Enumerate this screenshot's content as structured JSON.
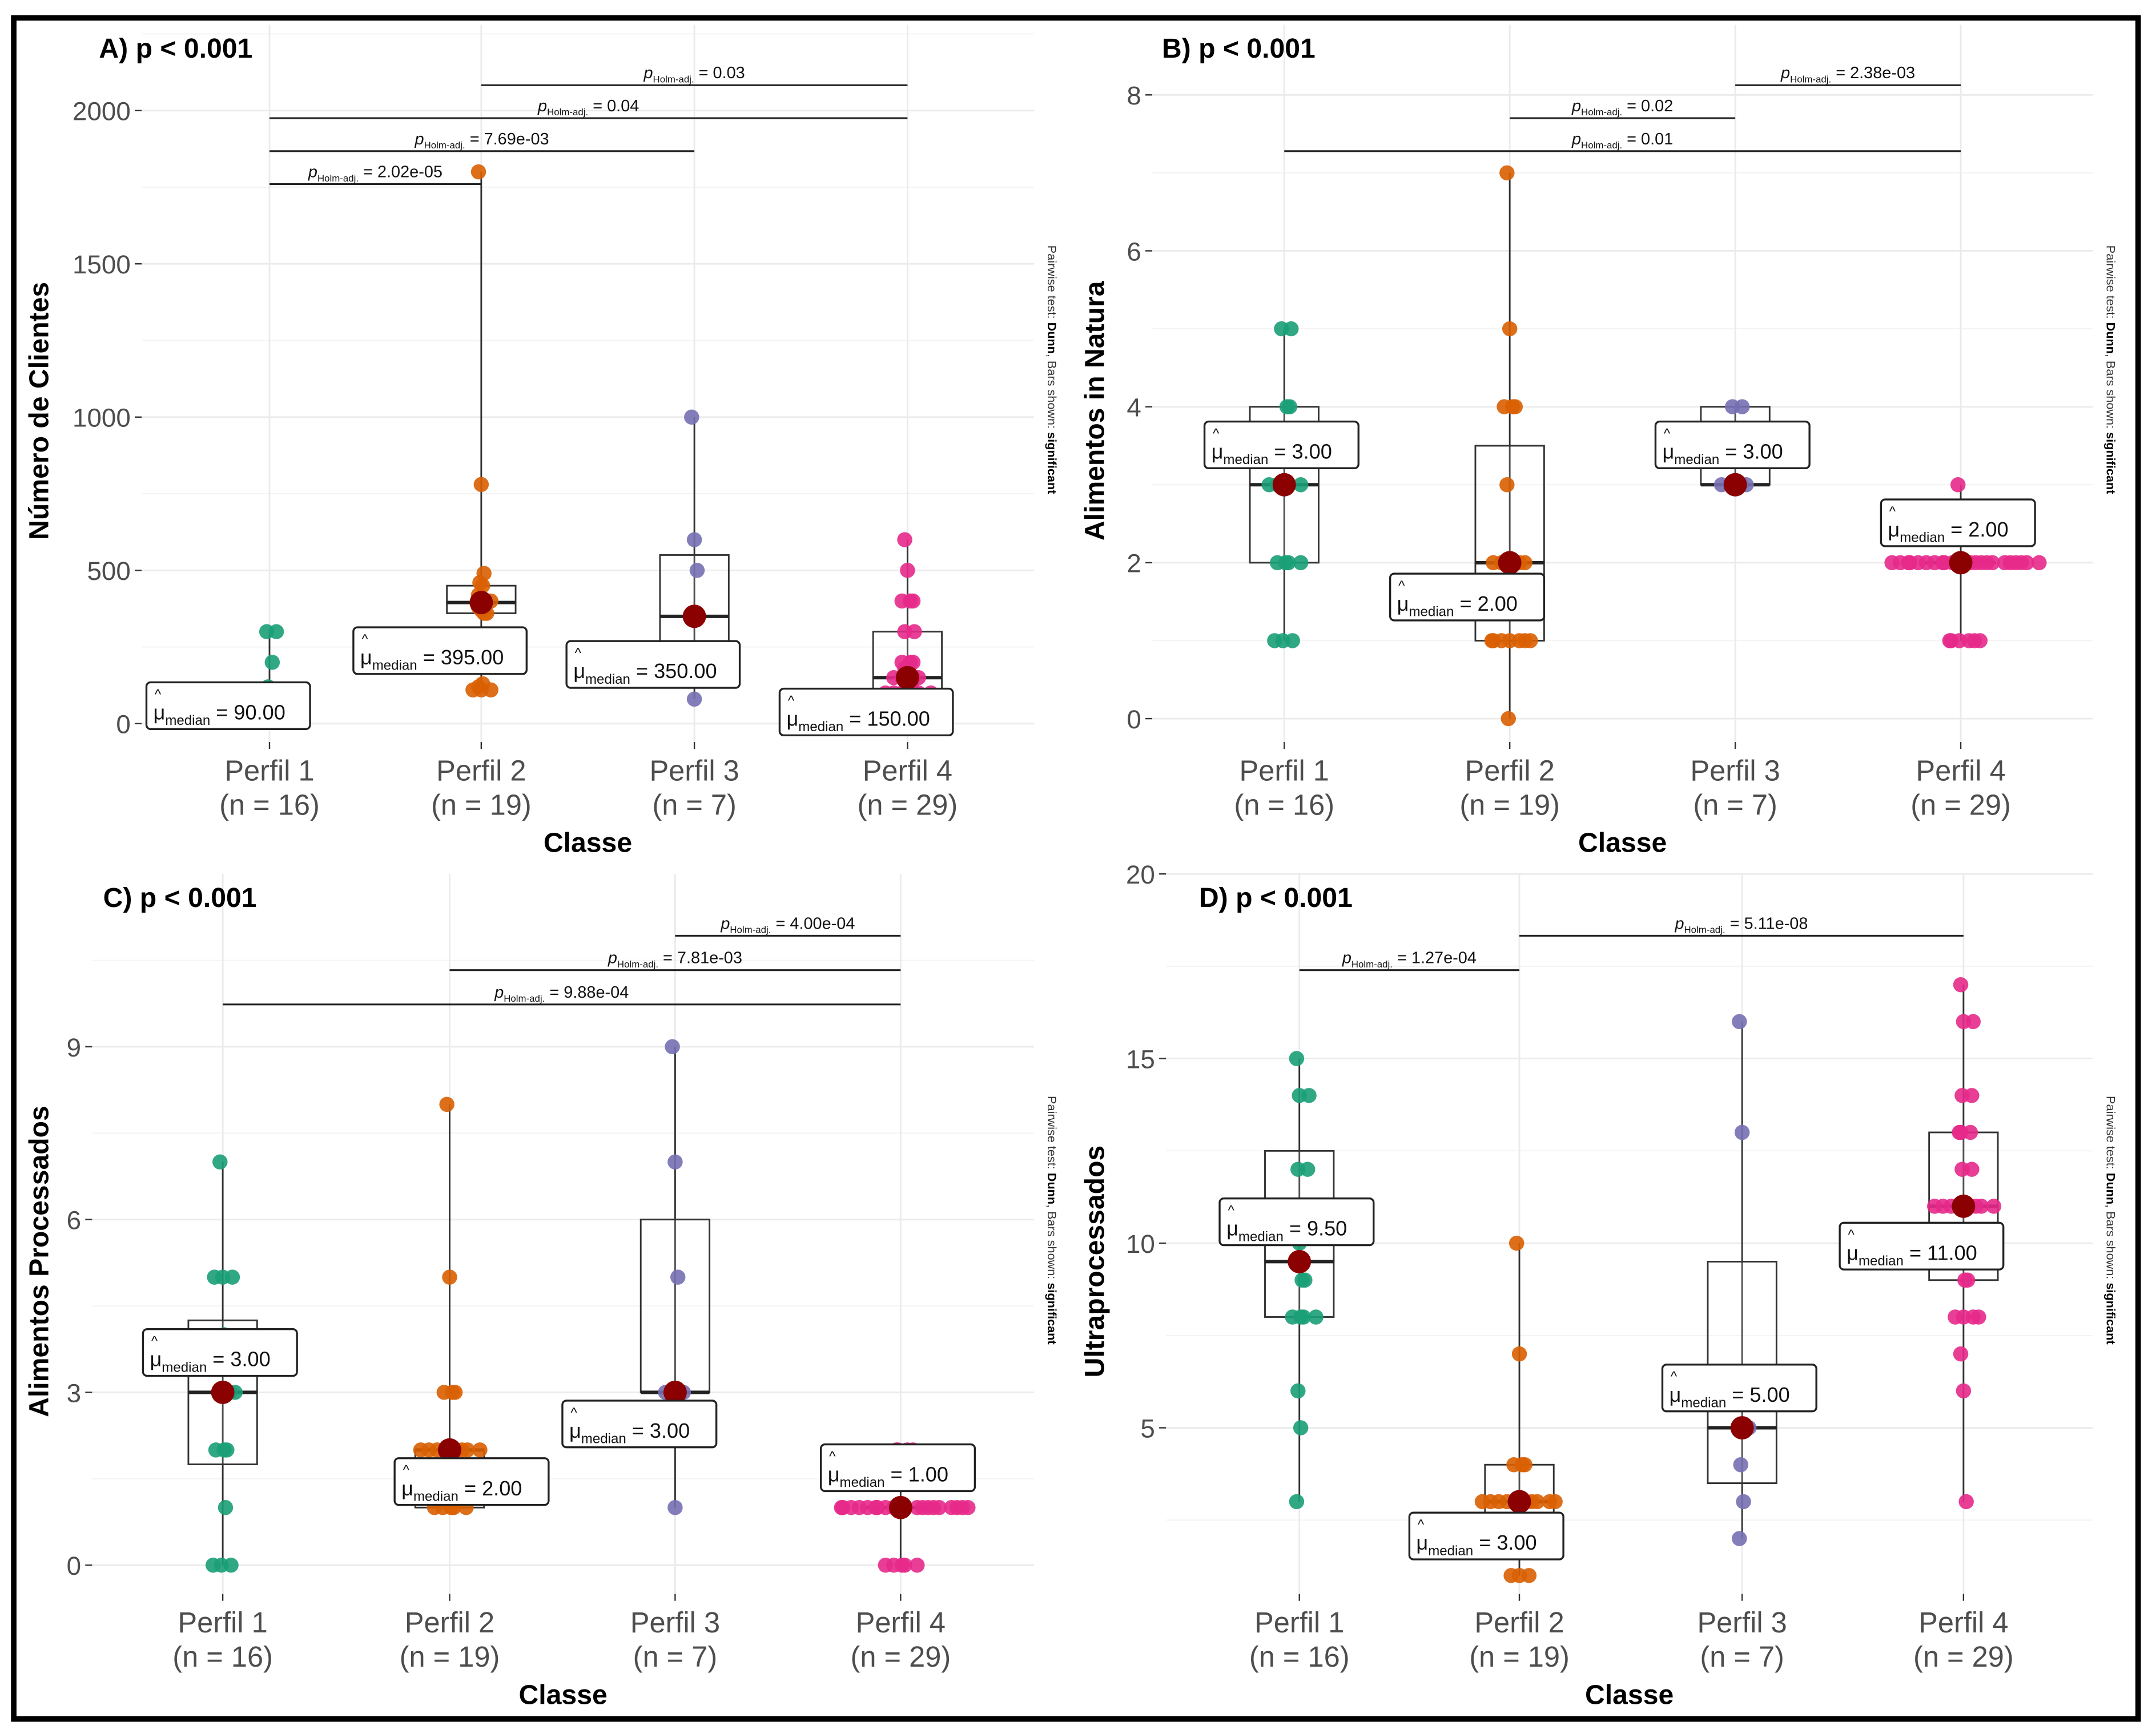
{
  "figure": {
    "caption_prefix": "Pairwise test: ",
    "caption_test": "Dunn",
    "caption_mid": ", Bars shown: ",
    "caption_bars": "significant",
    "colors": {
      "Perfil 1": "#1b9e77",
      "Perfil 2": "#d95f02",
      "Perfil 3": "#7570b3",
      "Perfil 4": "#e7298a",
      "median_dot": "#8b0000"
    }
  },
  "chart_data": [
    {
      "type": "boxplot",
      "panel": "A",
      "title": "A) p < 0.001",
      "xlabel": "Classe",
      "ylabel": "Número de Clientes",
      "ylim": [
        -60,
        2280
      ],
      "yticks": [
        0,
        500,
        1000,
        1500,
        2000
      ],
      "grid": true,
      "categories": [
        "Perfil 1",
        "Perfil 2",
        "Perfil 3",
        "Perfil 4"
      ],
      "n_labels": [
        "(n = 16)",
        "(n = 19)",
        "(n = 7)",
        "(n = 29)"
      ],
      "groups": [
        {
          "name": "Perfil 1",
          "q1": 80,
          "median": 90,
          "q3": 120,
          "whisker_low": 80,
          "whisker_high": 300,
          "points": [
            300,
            300,
            200,
            120,
            110,
            100,
            95,
            90,
            90,
            90,
            85,
            80,
            80,
            80,
            80,
            80
          ],
          "median_label": "90.00"
        },
        {
          "name": "Perfil 2",
          "q1": 360,
          "median": 395,
          "q3": 450,
          "whisker_low": 110,
          "whisker_high": 1800,
          "points": [
            1800,
            780,
            490,
            460,
            450,
            420,
            400,
            400,
            395,
            390,
            380,
            370,
            360,
            360,
            130,
            120,
            110,
            110,
            110
          ],
          "median_label": "395.00"
        },
        {
          "name": "Perfil 3",
          "q1": 150,
          "median": 350,
          "q3": 550,
          "whisker_low": 80,
          "whisker_high": 1000,
          "points": [
            1000,
            600,
            500,
            350,
            200,
            150,
            80
          ],
          "median_label": "350.00"
        },
        {
          "name": "Perfil 4",
          "q1": 100,
          "median": 150,
          "q3": 300,
          "whisker_low": 100,
          "whisker_high": 600,
          "points": [
            600,
            500,
            400,
            400,
            400,
            300,
            300,
            200,
            200,
            200,
            180,
            160,
            150,
            150,
            150,
            150,
            150,
            140,
            130,
            120,
            120,
            110,
            100,
            100,
            100,
            100,
            100,
            100,
            100
          ],
          "median_label": "150.00"
        }
      ],
      "comparisons": [
        {
          "from": 1,
          "to": 2,
          "p": "2.02e-05"
        },
        {
          "from": 1,
          "to": 3,
          "p": "7.69e-03"
        },
        {
          "from": 1,
          "to": 4,
          "p": "0.04"
        },
        {
          "from": 2,
          "to": 4,
          "p": "0.03"
        }
      ]
    },
    {
      "type": "boxplot",
      "panel": "B",
      "title": "B) p < 0.001",
      "xlabel": "Classe",
      "ylabel": "Alimentos in Natura",
      "ylim": [
        -0.3,
        8.9
      ],
      "yticks": [
        0,
        2,
        4,
        6,
        8
      ],
      "grid": true,
      "categories": [
        "Perfil 1",
        "Perfil 2",
        "Perfil 3",
        "Perfil 4"
      ],
      "n_labels": [
        "(n = 16)",
        "(n = 19)",
        "(n = 7)",
        "(n = 29)"
      ],
      "groups": [
        {
          "name": "Perfil 1",
          "q1": 2,
          "median": 3,
          "q3": 4,
          "whisker_low": 1,
          "whisker_high": 5,
          "points": [
            5,
            5,
            4,
            4,
            3,
            3,
            3,
            3,
            3,
            2,
            2,
            2,
            2,
            1,
            1,
            1
          ],
          "median_label": "3.00"
        },
        {
          "name": "Perfil 2",
          "q1": 1,
          "median": 2,
          "q3": 3.5,
          "whisker_low": 0,
          "whisker_high": 7,
          "points": [
            7,
            5,
            4,
            4,
            4,
            3,
            2,
            2,
            2,
            2,
            2,
            1,
            1,
            1,
            1,
            1,
            1,
            1,
            0
          ],
          "median_label": "2.00"
        },
        {
          "name": "Perfil 3",
          "q1": 3,
          "median": 3,
          "q3": 4,
          "whisker_low": 3,
          "whisker_high": 4,
          "points": [
            4,
            4,
            3,
            3,
            3,
            3,
            3
          ],
          "median_label": "3.00"
        },
        {
          "name": "Perfil 4",
          "q1": 2,
          "median": 2,
          "q3": 2,
          "whisker_low": 1,
          "whisker_high": 3,
          "points": [
            3,
            2,
            2,
            2,
            2,
            2,
            2,
            2,
            2,
            2,
            2,
            2,
            2,
            2,
            2,
            2,
            2,
            2,
            2,
            2,
            2,
            2,
            2,
            1,
            1,
            1,
            1,
            1,
            1
          ],
          "median_label": "2.00"
        }
      ],
      "comparisons": [
        {
          "from": 1,
          "to": 4,
          "p": "0.01"
        },
        {
          "from": 2,
          "to": 3,
          "p": "0.02"
        },
        {
          "from": 3,
          "to": 4,
          "p": "2.38e-03"
        }
      ]
    },
    {
      "type": "boxplot",
      "panel": "C",
      "title": "C) p < 0.001",
      "xlabel": "Classe",
      "ylabel": "Alimentos Processados",
      "ylim": [
        -0.5,
        12.0
      ],
      "yticks": [
        0,
        3,
        6,
        9
      ],
      "grid": true,
      "categories": [
        "Perfil 1",
        "Perfil 2",
        "Perfil 3",
        "Perfil 4"
      ],
      "n_labels": [
        "(n = 16)",
        "(n = 19)",
        "(n = 7)",
        "(n = 29)"
      ],
      "groups": [
        {
          "name": "Perfil 1",
          "q1": 1.75,
          "median": 3,
          "q3": 4.25,
          "whisker_low": 0,
          "whisker_high": 7,
          "points": [
            7,
            5,
            5,
            5,
            4,
            3,
            3,
            3,
            3,
            2,
            2,
            2,
            1,
            0,
            0,
            0
          ],
          "median_label": "3.00"
        },
        {
          "name": "Perfil 2",
          "q1": 1,
          "median": 2,
          "q3": 2,
          "whisker_low": 1,
          "whisker_high": 8,
          "points": [
            8,
            5,
            3,
            3,
            3,
            2,
            2,
            2,
            2,
            2,
            2,
            2,
            2,
            2,
            1,
            1,
            1,
            1,
            1
          ],
          "median_label": "2.00"
        },
        {
          "name": "Perfil 3",
          "q1": 3,
          "median": 3,
          "q3": 6,
          "whisker_low": 1,
          "whisker_high": 9,
          "points": [
            9,
            7,
            5,
            3,
            3,
            3,
            1
          ],
          "median_label": "3.00"
        },
        {
          "name": "Perfil 4",
          "q1": 1,
          "median": 1,
          "q3": 1,
          "whisker_low": 0,
          "whisker_high": 2,
          "points": [
            2,
            2,
            2,
            2,
            1,
            1,
            1,
            1,
            1,
            1,
            1,
            1,
            1,
            1,
            1,
            1,
            1,
            1,
            1,
            1,
            1,
            1,
            1,
            1,
            0,
            0,
            0,
            0,
            0
          ],
          "median_label": "1.00"
        }
      ],
      "comparisons": [
        {
          "from": 1,
          "to": 4,
          "p": "9.88e-04"
        },
        {
          "from": 2,
          "to": 4,
          "p": "7.81e-03"
        },
        {
          "from": 3,
          "to": 4,
          "p": "4.00e-04"
        }
      ]
    },
    {
      "type": "boxplot",
      "panel": "D",
      "title": "D) p < 0.001",
      "xlabel": "Classe",
      "ylabel": "Ultraprocessados",
      "ylim": [
        0.5,
        20.0
      ],
      "yticks": [
        5,
        10,
        15,
        20
      ],
      "grid": true,
      "categories": [
        "Perfil 1",
        "Perfil 2",
        "Perfil 3",
        "Perfil 4"
      ],
      "n_labels": [
        "(n = 16)",
        "(n = 19)",
        "(n = 7)",
        "(n = 29)"
      ],
      "groups": [
        {
          "name": "Perfil 1",
          "q1": 8,
          "median": 9.5,
          "q3": 12.5,
          "whisker_low": 3,
          "whisker_high": 15,
          "points": [
            15,
            14,
            14,
            12,
            12,
            11,
            10,
            9,
            9,
            8,
            8,
            8,
            8,
            6,
            5,
            3
          ],
          "median_label": "9.50"
        },
        {
          "name": "Perfil 2",
          "q1": 2.5,
          "median": 3,
          "q3": 4,
          "whisker_low": 1,
          "whisker_high": 10,
          "points": [
            10,
            7,
            4,
            4,
            4,
            3,
            3,
            3,
            3,
            3,
            3,
            3,
            3,
            3,
            3,
            3,
            1,
            1,
            1
          ],
          "median_label": "3.00"
        },
        {
          "name": "Perfil 3",
          "q1": 3.5,
          "median": 5,
          "q3": 9.5,
          "whisker_low": 2,
          "whisker_high": 16,
          "points": [
            16,
            13,
            5,
            4,
            3,
            2,
            5
          ],
          "median_label": "5.00"
        },
        {
          "name": "Perfil 4",
          "q1": 9,
          "median": 11,
          "q3": 13,
          "whisker_low": 3,
          "whisker_high": 17,
          "points": [
            17,
            16,
            16,
            14,
            14,
            13,
            13,
            13,
            12,
            12,
            11,
            11,
            11,
            11,
            11,
            11,
            11,
            11,
            10,
            9,
            9,
            8,
            8,
            8,
            8,
            7,
            6,
            3,
            11
          ],
          "median_label": "11.00"
        }
      ],
      "comparisons": [
        {
          "from": 1,
          "to": 2,
          "p": "1.27e-04"
        },
        {
          "from": 2,
          "to": 4,
          "p": "5.11e-08"
        }
      ]
    }
  ]
}
